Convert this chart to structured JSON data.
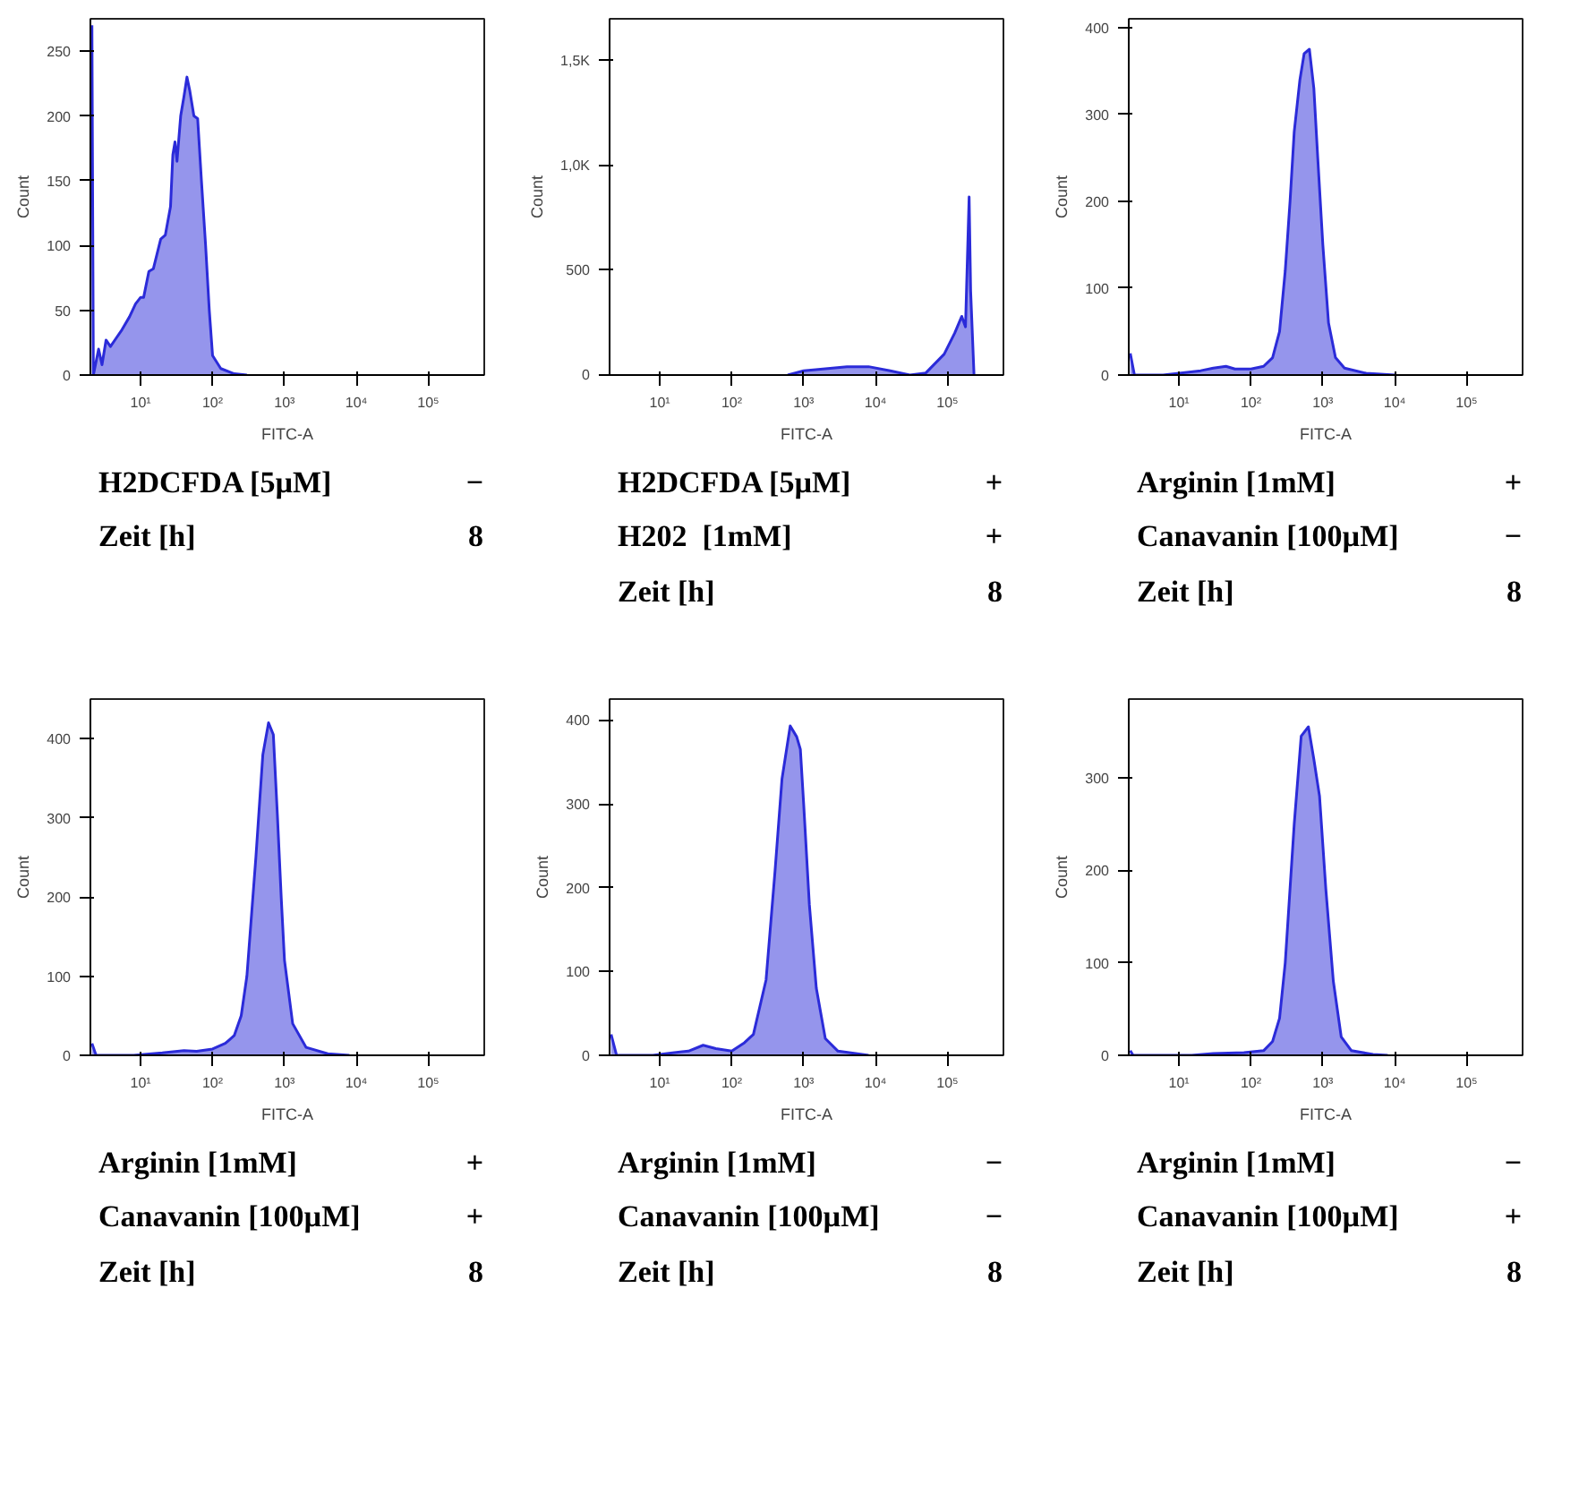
{
  "chart_data": [
    {
      "type": "area",
      "xlabel": "FITC-A",
      "ylabel": "Count",
      "log": "x",
      "grid": false,
      "xlim": [
        2,
        600000
      ],
      "xticks": [
        {
          "value": 10,
          "label": "10¹"
        },
        {
          "value": 100,
          "label": "10²"
        },
        {
          "value": 1000,
          "label": "10³"
        },
        {
          "value": 10000,
          "label": "10⁴"
        },
        {
          "value": 100000,
          "label": "10⁵"
        }
      ],
      "ylim": [
        0,
        275
      ],
      "yticks": [
        0,
        50,
        100,
        150,
        200,
        250
      ],
      "x": [
        2.1,
        2.2,
        2.6,
        2.9,
        3.3,
        3.8,
        4.5,
        5.5,
        7,
        8.5,
        10,
        11,
        13,
        15,
        19,
        22,
        26,
        28,
        30,
        32,
        36,
        40,
        44,
        48,
        55,
        62,
        70,
        80,
        90,
        100,
        130,
        200,
        300
      ],
      "series": [
        {
          "color": "#2b2bd9",
          "values": [
            270,
            0,
            20,
            8,
            27,
            22,
            28,
            35,
            45,
            55,
            60,
            60,
            80,
            82,
            105,
            108,
            130,
            170,
            180,
            165,
            200,
            215,
            230,
            220,
            200,
            198,
            150,
            100,
            50,
            15,
            5,
            1,
            0
          ]
        }
      ],
      "annotations": [
        "H2DCFDA [5µM] −",
        "Zeit [h] 8"
      ]
    },
    {
      "type": "area",
      "xlabel": "FITC-A",
      "ylabel": "Count",
      "log": "x",
      "grid": false,
      "xlim": [
        2,
        600000
      ],
      "xticks": [
        {
          "value": 10,
          "label": "10¹"
        },
        {
          "value": 100,
          "label": "10²"
        },
        {
          "value": 1000,
          "label": "10³"
        },
        {
          "value": 10000,
          "label": "10⁴"
        },
        {
          "value": 100000,
          "label": "10⁵"
        }
      ],
      "ylim": [
        0,
        1700
      ],
      "yticks": [
        0,
        500,
        {
          "value": 1000,
          "label": "1,0K"
        },
        {
          "value": 1500,
          "label": "1,5K"
        }
      ],
      "x": [
        600,
        1000,
        2000,
        4000,
        8000,
        16000,
        30000,
        50000,
        90000,
        126000,
        158000,
        178000,
        200000,
        210000,
        234000
      ],
      "series": [
        {
          "color": "#2b2bd9",
          "values": [
            0,
            20,
            30,
            40,
            40,
            20,
            0,
            10,
            100,
            200,
            280,
            230,
            850,
            400,
            0
          ]
        }
      ],
      "annotations": [
        "H2DCFDA [5µM] +",
        "H202  [1mM] +",
        "Zeit [h] 8"
      ]
    },
    {
      "type": "area",
      "xlabel": "FITC-A",
      "ylabel": "Count",
      "log": "x",
      "grid": false,
      "xlim": [
        2,
        600000
      ],
      "xticks": [
        {
          "value": 10,
          "label": "10¹"
        },
        {
          "value": 100,
          "label": "10²"
        },
        {
          "value": 1000,
          "label": "10³"
        },
        {
          "value": 10000,
          "label": "10⁴"
        },
        {
          "value": 100000,
          "label": "10⁵"
        }
      ],
      "ylim": [
        0,
        410
      ],
      "yticks": [
        0,
        100,
        200,
        300,
        400
      ],
      "x": [
        2.1,
        2.4,
        6,
        10,
        20,
        30,
        45,
        60,
        100,
        150,
        200,
        250,
        300,
        350,
        400,
        480,
        550,
        650,
        750,
        850,
        1000,
        1200,
        1500,
        2000,
        4000,
        10000
      ],
      "series": [
        {
          "color": "#2b2bd9",
          "values": [
            25,
            0,
            0,
            2,
            5,
            8,
            10,
            7,
            7,
            10,
            20,
            50,
            120,
            200,
            280,
            340,
            370,
            375,
            330,
            250,
            150,
            60,
            20,
            8,
            2,
            0
          ]
        }
      ],
      "annotations": [
        "Arginin [1mM] +",
        "Canavanin [100µM] −",
        "Zeit [h] 8"
      ]
    },
    {
      "type": "area",
      "xlabel": "FITC-A",
      "ylabel": "Count",
      "log": "x",
      "grid": false,
      "xlim": [
        2,
        600000
      ],
      "xticks": [
        {
          "value": 10,
          "label": "10¹"
        },
        {
          "value": 100,
          "label": "10²"
        },
        {
          "value": 1000,
          "label": "10³"
        },
        {
          "value": 10000,
          "label": "10⁴"
        },
        {
          "value": 100000,
          "label": "10⁵"
        }
      ],
      "ylim": [
        0,
        450
      ],
      "yticks": [
        0,
        100,
        200,
        300,
        400
      ],
      "x": [
        2.1,
        2.4,
        8,
        20,
        40,
        60,
        100,
        150,
        200,
        250,
        300,
        400,
        500,
        600,
        700,
        800,
        900,
        1000,
        1300,
        2000,
        4000,
        8000
      ],
      "series": [
        {
          "color": "#2b2bd9",
          "values": [
            15,
            0,
            0,
            3,
            6,
            5,
            8,
            15,
            25,
            50,
            100,
            250,
            380,
            420,
            405,
            300,
            200,
            120,
            40,
            10,
            2,
            0
          ]
        }
      ],
      "annotations": [
        "Arginin [1mM] +",
        "Canavanin [100µM] +",
        "Zeit [h] 8"
      ]
    },
    {
      "type": "area",
      "xlabel": "FITC-A",
      "ylabel": "Count",
      "log": "x",
      "grid": false,
      "xlim": [
        2,
        600000
      ],
      "xticks": [
        {
          "value": 10,
          "label": "10¹"
        },
        {
          "value": 100,
          "label": "10²"
        },
        {
          "value": 1000,
          "label": "10³"
        },
        {
          "value": 10000,
          "label": "10⁴"
        },
        {
          "value": 100000,
          "label": "10⁵"
        }
      ],
      "ylim": [
        0,
        425
      ],
      "yticks": [
        0,
        100,
        200,
        300,
        400
      ],
      "x": [
        2.1,
        2.5,
        8,
        15,
        25,
        40,
        60,
        100,
        150,
        200,
        300,
        400,
        500,
        650,
        800,
        900,
        1000,
        1200,
        1500,
        2000,
        3000,
        8000
      ],
      "series": [
        {
          "color": "#2b2bd9",
          "values": [
            25,
            0,
            0,
            3,
            5,
            12,
            8,
            5,
            15,
            25,
            90,
            220,
            330,
            393,
            380,
            365,
            300,
            180,
            80,
            20,
            5,
            0
          ]
        }
      ],
      "annotations": [
        "Arginin [1mM] −",
        "Canavanin [100µM] −",
        "Zeit [h] 8"
      ]
    },
    {
      "type": "area",
      "xlabel": "FITC-A",
      "ylabel": "Count",
      "log": "x",
      "grid": false,
      "xlim": [
        2,
        600000
      ],
      "xticks": [
        {
          "value": 10,
          "label": "10¹"
        },
        {
          "value": 100,
          "label": "10²"
        },
        {
          "value": 1000,
          "label": "10³"
        },
        {
          "value": 10000,
          "label": "10⁴"
        },
        {
          "value": 100000,
          "label": "10⁵"
        }
      ],
      "ylim": [
        0,
        385
      ],
      "yticks": [
        0,
        100,
        200,
        300
      ],
      "x": [
        2.1,
        2.3,
        15,
        30,
        80,
        150,
        200,
        250,
        300,
        400,
        500,
        630,
        750,
        900,
        1100,
        1400,
        1800,
        2500,
        5000,
        8000
      ],
      "series": [
        {
          "color": "#2b2bd9",
          "values": [
            5,
            0,
            0,
            2,
            3,
            5,
            15,
            40,
            100,
            250,
            345,
            355,
            320,
            280,
            180,
            80,
            20,
            5,
            1,
            0
          ]
        }
      ],
      "annotations": [
        "Arginin [1mM] −",
        "Canavanin [100µM] +",
        "Zeit [h] 8"
      ]
    }
  ]
}
